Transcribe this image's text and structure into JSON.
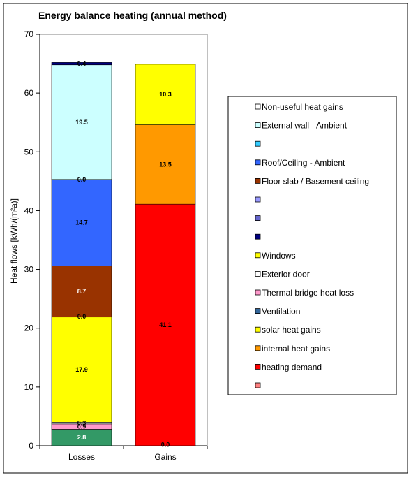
{
  "chart_data": {
    "type": "bar",
    "stacked": true,
    "title": "Energy balance heating (annual method)",
    "xlabel": "",
    "ylabel": "Heat flows [kWh/(m²a)]",
    "ylim": [
      0,
      70
    ],
    "yticks": [
      "0",
      "10",
      "20",
      "30",
      "40",
      "50",
      "60",
      "70"
    ],
    "categories": [
      "Losses",
      "Gains"
    ],
    "grid": false,
    "legend_position": "right",
    "series": [
      {
        "name": "heating demand",
        "color": "#ff0000",
        "label_color": "#000000",
        "values": [
          null,
          41.1
        ],
        "labels": [
          "",
          "41.1"
        ]
      },
      {
        "name": "internal heat gains",
        "color": "#ff9900",
        "label_color": "#000000",
        "values": [
          null,
          13.5
        ],
        "labels": [
          "",
          "13.5"
        ]
      },
      {
        "name": "solar heat gains",
        "color": "#ffff00",
        "label_color": "#000000",
        "values": [
          null,
          10.3
        ],
        "labels": [
          "",
          "10.3"
        ]
      },
      {
        "name": "Ventilation",
        "color": "#339966",
        "label_color": "#ffffff",
        "values": [
          2.8,
          null
        ],
        "labels": [
          "2.8",
          ""
        ]
      },
      {
        "name": "Thermal bridge heat loss",
        "color": "#ff99cc",
        "label_color": "#000000",
        "values": [
          0.9,
          null
        ],
        "labels": [
          "0.9",
          ""
        ]
      },
      {
        "name": "Exterior door",
        "color": "#ffffff",
        "label_color": "#000000",
        "values": [
          0.3,
          null
        ],
        "labels": [
          "0.3",
          ""
        ]
      },
      {
        "name": "Windows",
        "color": "#ffff00",
        "label_color": "#000000",
        "values": [
          17.9,
          null
        ],
        "labels": [
          "17.9",
          ""
        ]
      },
      {
        "name": "Floor slab / Basement ceiling",
        "color": "#993300",
        "label_color": "#ffffff",
        "values": [
          8.7,
          null
        ],
        "labels": [
          "8.7",
          ""
        ]
      },
      {
        "name": "Roof/Ceiling - Ambient",
        "color": "#3366ff",
        "label_color": "#000000",
        "values": [
          14.7,
          null
        ],
        "labels": [
          "14.7",
          ""
        ]
      },
      {
        "name": "External wall - Ambient",
        "color": "#ccffff",
        "label_color": "#000000",
        "values": [
          19.5,
          null
        ],
        "labels": [
          "19.5",
          ""
        ]
      },
      {
        "name": "Non-useful heat gains",
        "color": "#000080",
        "label_color": "#000000",
        "values": [
          0.4,
          null
        ],
        "labels": [
          "0.4",
          ""
        ]
      }
    ],
    "overlay_labels": [
      {
        "category": "Losses",
        "value_at": 22.0,
        "text": "0.0"
      },
      {
        "category": "Losses",
        "value_at": 45.3,
        "text": "0.0"
      },
      {
        "category": "Gains",
        "value_at": 0.2,
        "text": "0.0"
      }
    ],
    "legend": [
      {
        "label": "Non-useful heat gains",
        "color": "#ffffff"
      },
      {
        "label": "External wall - Ambient",
        "color": "#ccffff"
      },
      {
        "label": "",
        "color": "#33ccff"
      },
      {
        "label": "Roof/Ceiling - Ambient",
        "color": "#3366ff"
      },
      {
        "label": "Floor slab / Basement ceiling",
        "color": "#993300"
      },
      {
        "label": "",
        "color": "#9999ff"
      },
      {
        "label": "",
        "color": "#6666cc"
      },
      {
        "label": "",
        "color": "#000080"
      },
      {
        "label": "Windows",
        "color": "#ffff00"
      },
      {
        "label": "Exterior door",
        "color": "#ffffff"
      },
      {
        "label": "Thermal bridge heat loss",
        "color": "#ff99cc"
      },
      {
        "label": "Ventilation",
        "color": "#336699"
      },
      {
        "label": "solar heat gains",
        "color": "#ffff00"
      },
      {
        "label": "internal heat gains",
        "color": "#ff9900"
      },
      {
        "label": "heating demand",
        "color": "#ff0000"
      },
      {
        "label": "",
        "color": "#ff8080"
      }
    ]
  }
}
